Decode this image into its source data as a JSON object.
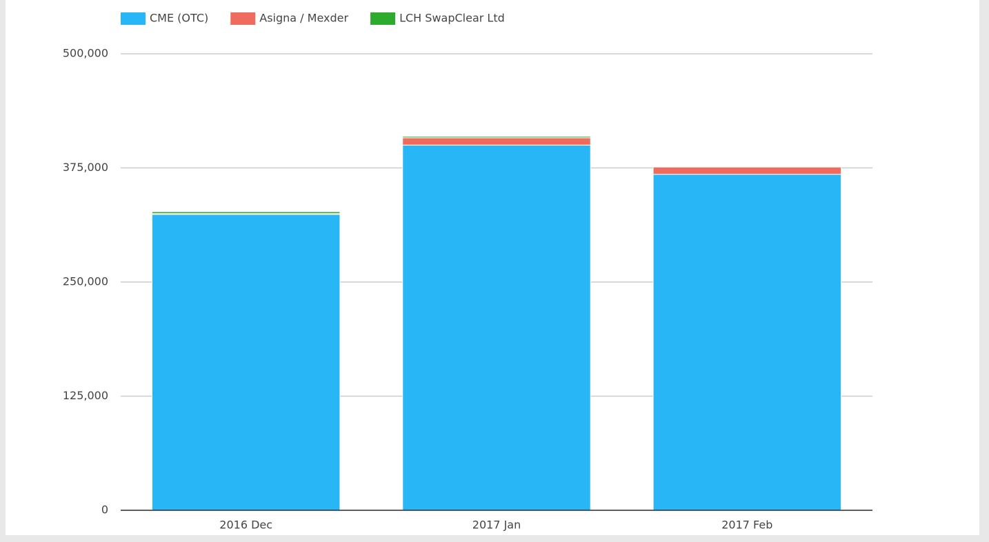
{
  "chart_data": {
    "type": "stacked_bar",
    "categories": [
      "2016 Dec",
      "2017 Jan",
      "2017 Feb"
    ],
    "series": [
      {
        "name": "CME (OTC)",
        "color": "#29b6f6",
        "values": [
          324000,
          400000,
          368000
        ]
      },
      {
        "name": "Asigna / Mexder",
        "color": "#ef6b5e",
        "values": [
          1000,
          8000,
          8000
        ]
      },
      {
        "name": "LCH SwapClear Ltd",
        "color": "#2eaa2e",
        "values": [
          2000,
          1500,
          500
        ]
      }
    ],
    "ylim": [
      0,
      500000
    ],
    "yticks": [
      {
        "value": 0,
        "label": "0"
      },
      {
        "value": 125000,
        "label": "125,000"
      },
      {
        "value": 250000,
        "label": "250,000"
      },
      {
        "value": 375000,
        "label": "375,000"
      },
      {
        "value": 500000,
        "label": "500,000"
      }
    ],
    "grid": true
  }
}
